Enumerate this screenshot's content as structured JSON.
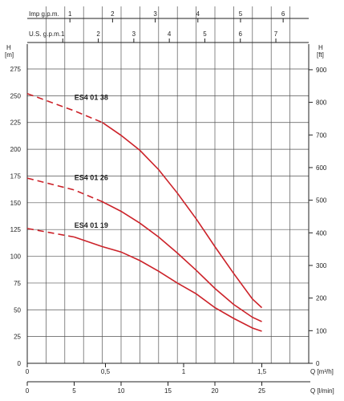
{
  "chart_data": {
    "type": "line",
    "curve_color": "#cc2229",
    "x_axis": {
      "label": "Q [l/min]",
      "range": [
        0,
        30
      ],
      "ticks": [
        "0",
        "5",
        "10",
        "15",
        "20",
        "25"
      ],
      "tick_values": [
        0,
        5,
        10,
        15,
        20,
        25
      ]
    },
    "x_axis_m3h": {
      "label": "Q [m³/h]",
      "ticks": [
        "0",
        "0,5",
        "1",
        "1,5"
      ],
      "tick_values": [
        0,
        8.333,
        16.667,
        25
      ]
    },
    "x_axis_us_gpm": {
      "label": "U.S. g.p.m.",
      "ticks": [
        "1",
        "2",
        "3",
        "4",
        "5",
        "6",
        "7"
      ],
      "tick_values": [
        3.785,
        7.571,
        11.356,
        15.142,
        18.927,
        22.712,
        26.498
      ]
    },
    "x_axis_imp_gpm": {
      "label": "Imp g.p.m.",
      "ticks": [
        "1",
        "2",
        "3",
        "4",
        "5",
        "6"
      ],
      "tick_values": [
        4.546,
        9.092,
        13.638,
        18.184,
        22.73,
        27.276
      ]
    },
    "y_axis_left": {
      "label_top": "H",
      "label_unit": "[m]",
      "range": [
        0,
        287
      ],
      "ticks": [
        "0",
        "25",
        "50",
        "75",
        "100",
        "125",
        "150",
        "175",
        "200",
        "225",
        "250",
        "275"
      ],
      "tick_values": [
        0,
        25,
        50,
        75,
        100,
        125,
        150,
        175,
        200,
        225,
        250,
        275
      ]
    },
    "y_axis_right": {
      "label_top": "H",
      "label_unit": "[ft]",
      "ticks": [
        "0",
        "100",
        "200",
        "300",
        "400",
        "500",
        "600",
        "700",
        "800",
        "900"
      ],
      "tick_values": [
        0,
        30.48,
        60.96,
        91.44,
        121.92,
        152.4,
        182.88,
        213.36,
        243.84,
        274.32
      ]
    },
    "series": [
      {
        "name": "ES4 01 38",
        "x": [
          0,
          5,
          8,
          10,
          12,
          14,
          16,
          18,
          20,
          22,
          24,
          25
        ],
        "y": [
          252,
          236,
          225,
          213,
          199,
          181,
          159,
          135,
          109,
          84,
          60,
          52
        ],
        "dashed_until": 8
      },
      {
        "name": "ES4 01 26",
        "x": [
          0,
          5,
          8,
          10,
          12,
          14,
          16,
          18,
          20,
          22,
          24,
          25
        ],
        "y": [
          173,
          162,
          151,
          142,
          131,
          118,
          103,
          87,
          70,
          55,
          43,
          39
        ],
        "dashed_until": 8
      },
      {
        "name": "ES4 01 19",
        "x": [
          0,
          5,
          8,
          10,
          12,
          14,
          16,
          18,
          20,
          22,
          24,
          25
        ],
        "y": [
          126,
          118,
          109,
          104,
          96,
          86,
          75,
          65,
          52,
          42,
          33,
          30
        ],
        "dashed_until": 5
      }
    ]
  }
}
